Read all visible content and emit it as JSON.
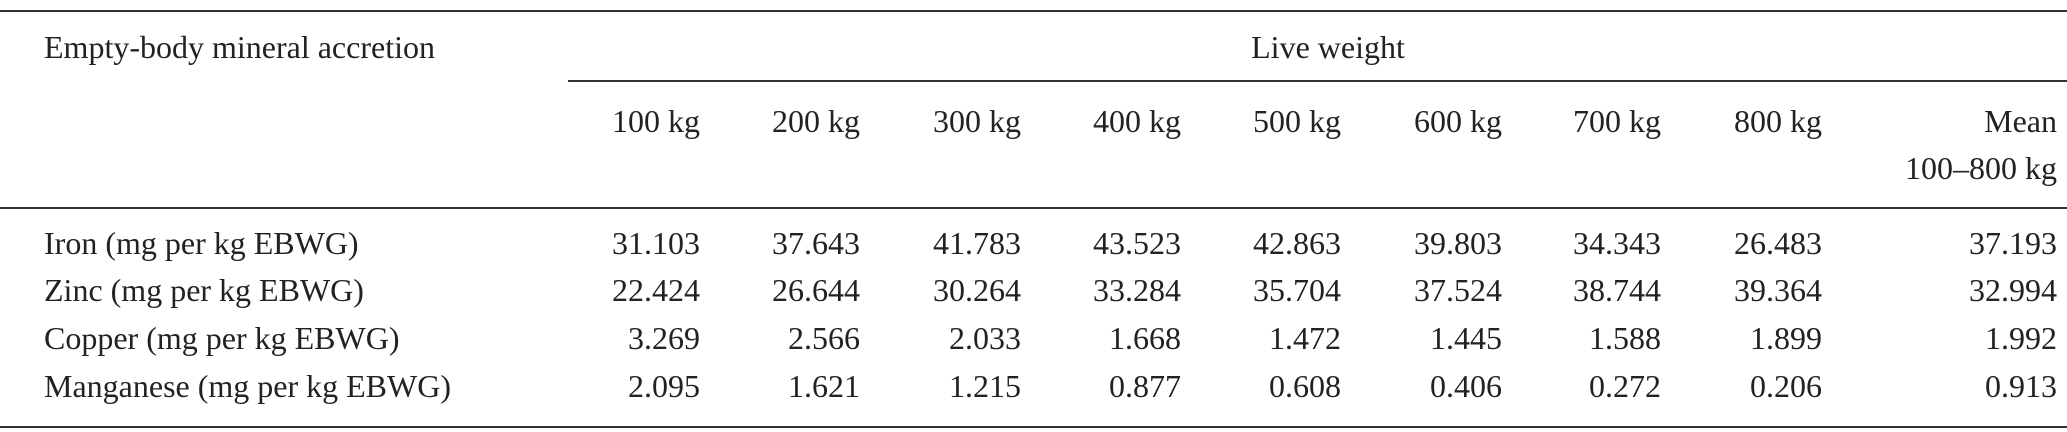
{
  "table": {
    "stub_header": "Empty-body mineral accretion",
    "group_header": "Live weight",
    "columns": [
      "100 kg",
      "200 kg",
      "300 kg",
      "400 kg",
      "500 kg",
      "600 kg",
      "700 kg",
      "800 kg"
    ],
    "mean_header": [
      "Mean",
      "100–800 kg"
    ],
    "rows": [
      {
        "label": "Iron (mg per kg EBWG)",
        "values": [
          31.103,
          37.643,
          41.783,
          43.523,
          42.863,
          39.803,
          34.343,
          26.483,
          37.193
        ]
      },
      {
        "label": "Zinc (mg per kg EBWG)",
        "values": [
          22.424,
          26.644,
          30.264,
          33.284,
          35.704,
          37.524,
          38.744,
          39.364,
          32.994
        ]
      },
      {
        "label": "Copper (mg per kg EBWG)",
        "values": [
          3.269,
          2.566,
          2.033,
          1.668,
          1.472,
          1.445,
          1.588,
          1.899,
          1.992
        ]
      },
      {
        "label": "Manganese (mg per kg EBWG)",
        "values": [
          2.095,
          1.621,
          1.215,
          0.877,
          0.608,
          0.406,
          0.272,
          0.206,
          0.913
        ]
      }
    ]
  }
}
